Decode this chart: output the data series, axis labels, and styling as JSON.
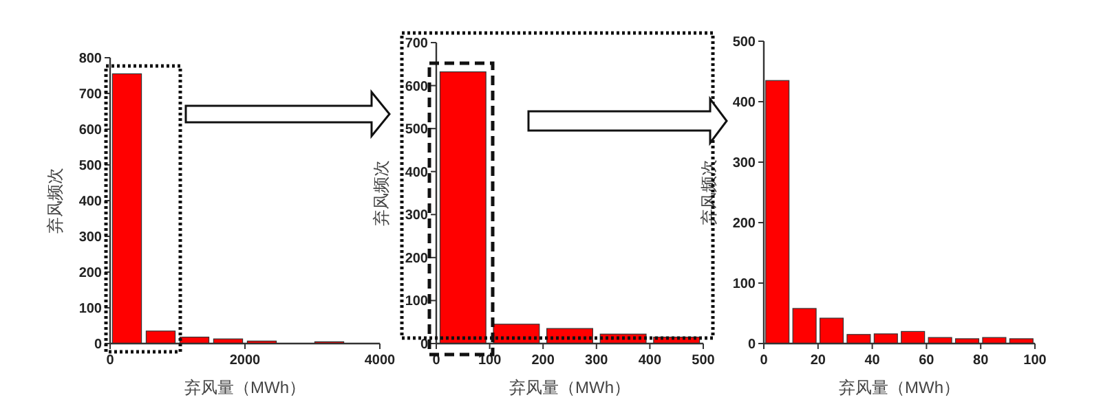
{
  "chart_data": [
    {
      "type": "histogram",
      "xlabel": "弃风量（MWh）",
      "ylabel": "弃风频次",
      "color": "#ff0000",
      "bins": [
        0,
        500,
        1000,
        1500,
        2000,
        2500,
        3000,
        3500,
        4000
      ],
      "values": [
        755,
        35,
        18,
        13,
        7,
        0,
        5,
        0
      ],
      "xlim": [
        0,
        4000
      ],
      "xticks": [
        0,
        2000,
        4000
      ],
      "ylim": [
        0,
        800
      ],
      "yticks": [
        0,
        100,
        200,
        300,
        400,
        500,
        600,
        700,
        800
      ],
      "grid": false
    },
    {
      "type": "histogram",
      "xlabel": "弃风量（MWh）",
      "ylabel": "弃风频次",
      "color": "#ff0000",
      "bins": [
        0,
        100,
        200,
        300,
        400,
        500
      ],
      "values": [
        632,
        45,
        35,
        22,
        15
      ],
      "xlim": [
        0,
        500
      ],
      "xticks": [
        0,
        100,
        200,
        300,
        400,
        500
      ],
      "ylim": [
        0,
        700
      ],
      "yticks": [
        0,
        100,
        200,
        300,
        400,
        500,
        600,
        700
      ],
      "grid": false
    },
    {
      "type": "histogram",
      "xlabel": "弃风量（MWh）",
      "ylabel": "弃风频次",
      "color": "#ff0000",
      "bins": [
        0,
        10,
        20,
        30,
        40,
        50,
        60,
        70,
        80,
        90,
        100
      ],
      "values": [
        435,
        58,
        42,
        15,
        16,
        20,
        10,
        8,
        10,
        8
      ],
      "xlim": [
        0,
        100
      ],
      "xticks": [
        0,
        20,
        40,
        60,
        80,
        100
      ],
      "ylim": [
        0,
        500
      ],
      "yticks": [
        0,
        100,
        200,
        300,
        400,
        500
      ],
      "grid": false
    }
  ]
}
